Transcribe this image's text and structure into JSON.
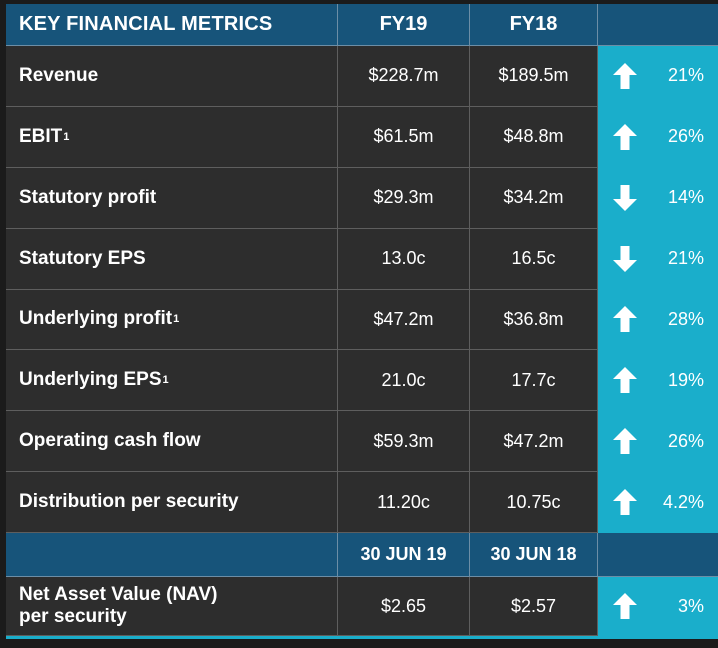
{
  "header": {
    "title": "KEY FINANCIAL METRICS",
    "col1": "FY19",
    "col2": "FY18"
  },
  "rows": [
    {
      "label": "Revenue",
      "sup": "",
      "fy19": "$228.7m",
      "fy18": "$189.5m",
      "direction": "up",
      "change": "21%"
    },
    {
      "label": "EBIT",
      "sup": "1",
      "fy19": "$61.5m",
      "fy18": "$48.8m",
      "direction": "up",
      "change": "26%"
    },
    {
      "label": "Statutory profit",
      "sup": "",
      "fy19": "$29.3m",
      "fy18": "$34.2m",
      "direction": "down",
      "change": "14%"
    },
    {
      "label": "Statutory EPS",
      "sup": "",
      "fy19": "13.0c",
      "fy18": "16.5c",
      "direction": "down",
      "change": "21%"
    },
    {
      "label": "Underlying profit",
      "sup": "1",
      "fy19": "$47.2m",
      "fy18": "$36.8m",
      "direction": "up",
      "change": "28%"
    },
    {
      "label": "Underlying EPS",
      "sup": "1",
      "fy19": "21.0c",
      "fy18": "17.7c",
      "direction": "up",
      "change": "19%"
    },
    {
      "label": "Operating cash flow",
      "sup": "",
      "fy19": "$59.3m",
      "fy18": "$47.2m",
      "direction": "up",
      "change": "26%"
    },
    {
      "label": "Distribution per security",
      "sup": "",
      "fy19": "11.20c",
      "fy18": "10.75c",
      "direction": "up",
      "change": "4.2%"
    }
  ],
  "subheader": {
    "col1": "30 JUN 19",
    "col2": "30 JUN 18"
  },
  "nav": {
    "label_line1": "Net Asset Value (NAV)",
    "label_line2": "per security",
    "fy19": "$2.65",
    "fy18": "$2.57",
    "direction": "up",
    "change": "3%"
  },
  "colors": {
    "header": "#17547a",
    "body": "#2d2d2d",
    "accent": "#1aaecb"
  }
}
